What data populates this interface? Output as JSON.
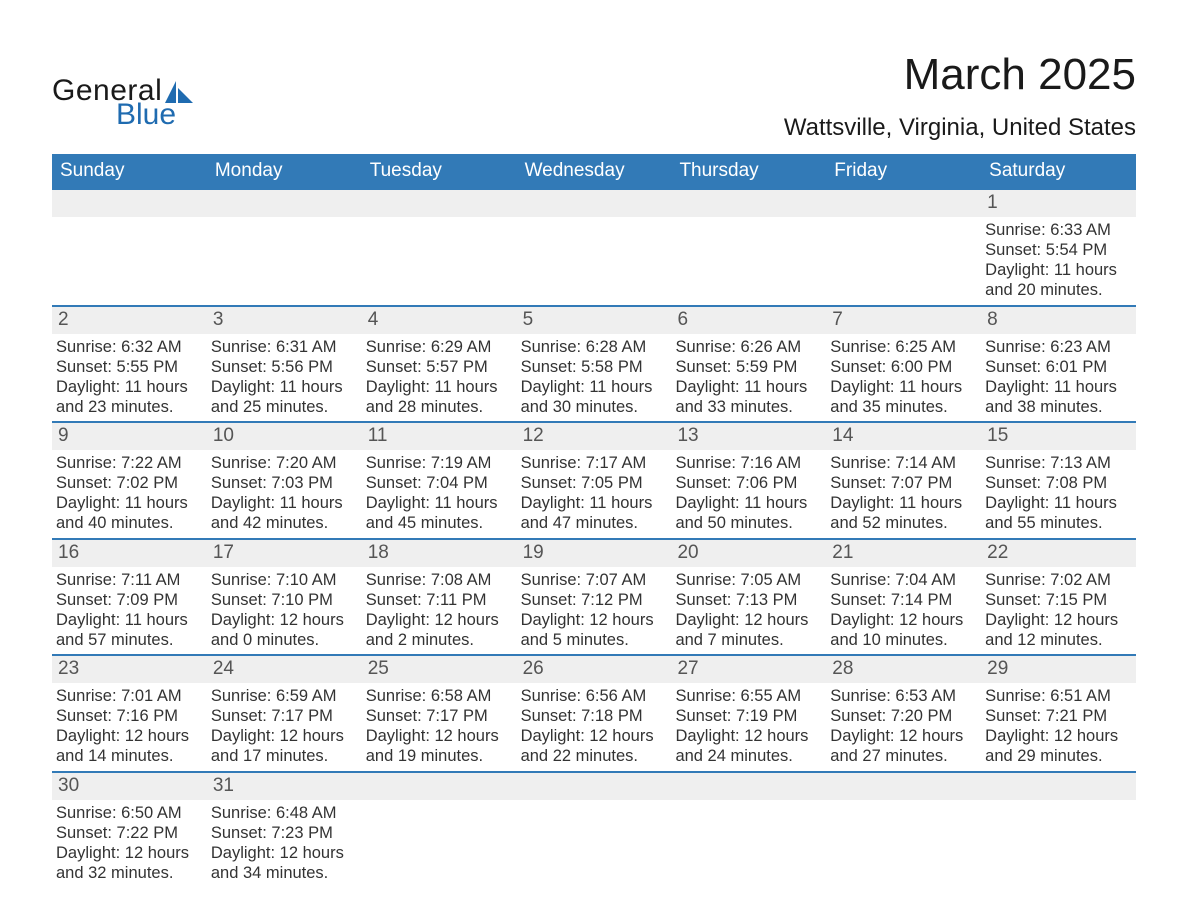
{
  "logo": {
    "text1": "General",
    "text2": "Blue"
  },
  "title": "March 2025",
  "location": "Wattsville, Virginia, United States",
  "colors": {
    "header_blue": "#327ab7",
    "day_num_bg": "#efefef",
    "logo_blue": "#1f6bb0"
  },
  "weekdays": [
    "Sunday",
    "Monday",
    "Tuesday",
    "Wednesday",
    "Thursday",
    "Friday",
    "Saturday"
  ],
  "weeks": [
    [
      null,
      null,
      null,
      null,
      null,
      null,
      {
        "n": "1",
        "sr": "6:33 AM",
        "ss": "5:54 PM",
        "dl": "11 hours and 20 minutes."
      }
    ],
    [
      {
        "n": "2",
        "sr": "6:32 AM",
        "ss": "5:55 PM",
        "dl": "11 hours and 23 minutes."
      },
      {
        "n": "3",
        "sr": "6:31 AM",
        "ss": "5:56 PM",
        "dl": "11 hours and 25 minutes."
      },
      {
        "n": "4",
        "sr": "6:29 AM",
        "ss": "5:57 PM",
        "dl": "11 hours and 28 minutes."
      },
      {
        "n": "5",
        "sr": "6:28 AM",
        "ss": "5:58 PM",
        "dl": "11 hours and 30 minutes."
      },
      {
        "n": "6",
        "sr": "6:26 AM",
        "ss": "5:59 PM",
        "dl": "11 hours and 33 minutes."
      },
      {
        "n": "7",
        "sr": "6:25 AM",
        "ss": "6:00 PM",
        "dl": "11 hours and 35 minutes."
      },
      {
        "n": "8",
        "sr": "6:23 AM",
        "ss": "6:01 PM",
        "dl": "11 hours and 38 minutes."
      }
    ],
    [
      {
        "n": "9",
        "sr": "7:22 AM",
        "ss": "7:02 PM",
        "dl": "11 hours and 40 minutes."
      },
      {
        "n": "10",
        "sr": "7:20 AM",
        "ss": "7:03 PM",
        "dl": "11 hours and 42 minutes."
      },
      {
        "n": "11",
        "sr": "7:19 AM",
        "ss": "7:04 PM",
        "dl": "11 hours and 45 minutes."
      },
      {
        "n": "12",
        "sr": "7:17 AM",
        "ss": "7:05 PM",
        "dl": "11 hours and 47 minutes."
      },
      {
        "n": "13",
        "sr": "7:16 AM",
        "ss": "7:06 PM",
        "dl": "11 hours and 50 minutes."
      },
      {
        "n": "14",
        "sr": "7:14 AM",
        "ss": "7:07 PM",
        "dl": "11 hours and 52 minutes."
      },
      {
        "n": "15",
        "sr": "7:13 AM",
        "ss": "7:08 PM",
        "dl": "11 hours and 55 minutes."
      }
    ],
    [
      {
        "n": "16",
        "sr": "7:11 AM",
        "ss": "7:09 PM",
        "dl": "11 hours and 57 minutes."
      },
      {
        "n": "17",
        "sr": "7:10 AM",
        "ss": "7:10 PM",
        "dl": "12 hours and 0 minutes."
      },
      {
        "n": "18",
        "sr": "7:08 AM",
        "ss": "7:11 PM",
        "dl": "12 hours and 2 minutes."
      },
      {
        "n": "19",
        "sr": "7:07 AM",
        "ss": "7:12 PM",
        "dl": "12 hours and 5 minutes."
      },
      {
        "n": "20",
        "sr": "7:05 AM",
        "ss": "7:13 PM",
        "dl": "12 hours and 7 minutes."
      },
      {
        "n": "21",
        "sr": "7:04 AM",
        "ss": "7:14 PM",
        "dl": "12 hours and 10 minutes."
      },
      {
        "n": "22",
        "sr": "7:02 AM",
        "ss": "7:15 PM",
        "dl": "12 hours and 12 minutes."
      }
    ],
    [
      {
        "n": "23",
        "sr": "7:01 AM",
        "ss": "7:16 PM",
        "dl": "12 hours and 14 minutes."
      },
      {
        "n": "24",
        "sr": "6:59 AM",
        "ss": "7:17 PM",
        "dl": "12 hours and 17 minutes."
      },
      {
        "n": "25",
        "sr": "6:58 AM",
        "ss": "7:17 PM",
        "dl": "12 hours and 19 minutes."
      },
      {
        "n": "26",
        "sr": "6:56 AM",
        "ss": "7:18 PM",
        "dl": "12 hours and 22 minutes."
      },
      {
        "n": "27",
        "sr": "6:55 AM",
        "ss": "7:19 PM",
        "dl": "12 hours and 24 minutes."
      },
      {
        "n": "28",
        "sr": "6:53 AM",
        "ss": "7:20 PM",
        "dl": "12 hours and 27 minutes."
      },
      {
        "n": "29",
        "sr": "6:51 AM",
        "ss": "7:21 PM",
        "dl": "12 hours and 29 minutes."
      }
    ],
    [
      {
        "n": "30",
        "sr": "6:50 AM",
        "ss": "7:22 PM",
        "dl": "12 hours and 32 minutes."
      },
      {
        "n": "31",
        "sr": "6:48 AM",
        "ss": "7:23 PM",
        "dl": "12 hours and 34 minutes."
      },
      null,
      null,
      null,
      null,
      null
    ]
  ],
  "labels": {
    "sunrise": "Sunrise:",
    "sunset": "Sunset:",
    "daylight": "Daylight:"
  }
}
